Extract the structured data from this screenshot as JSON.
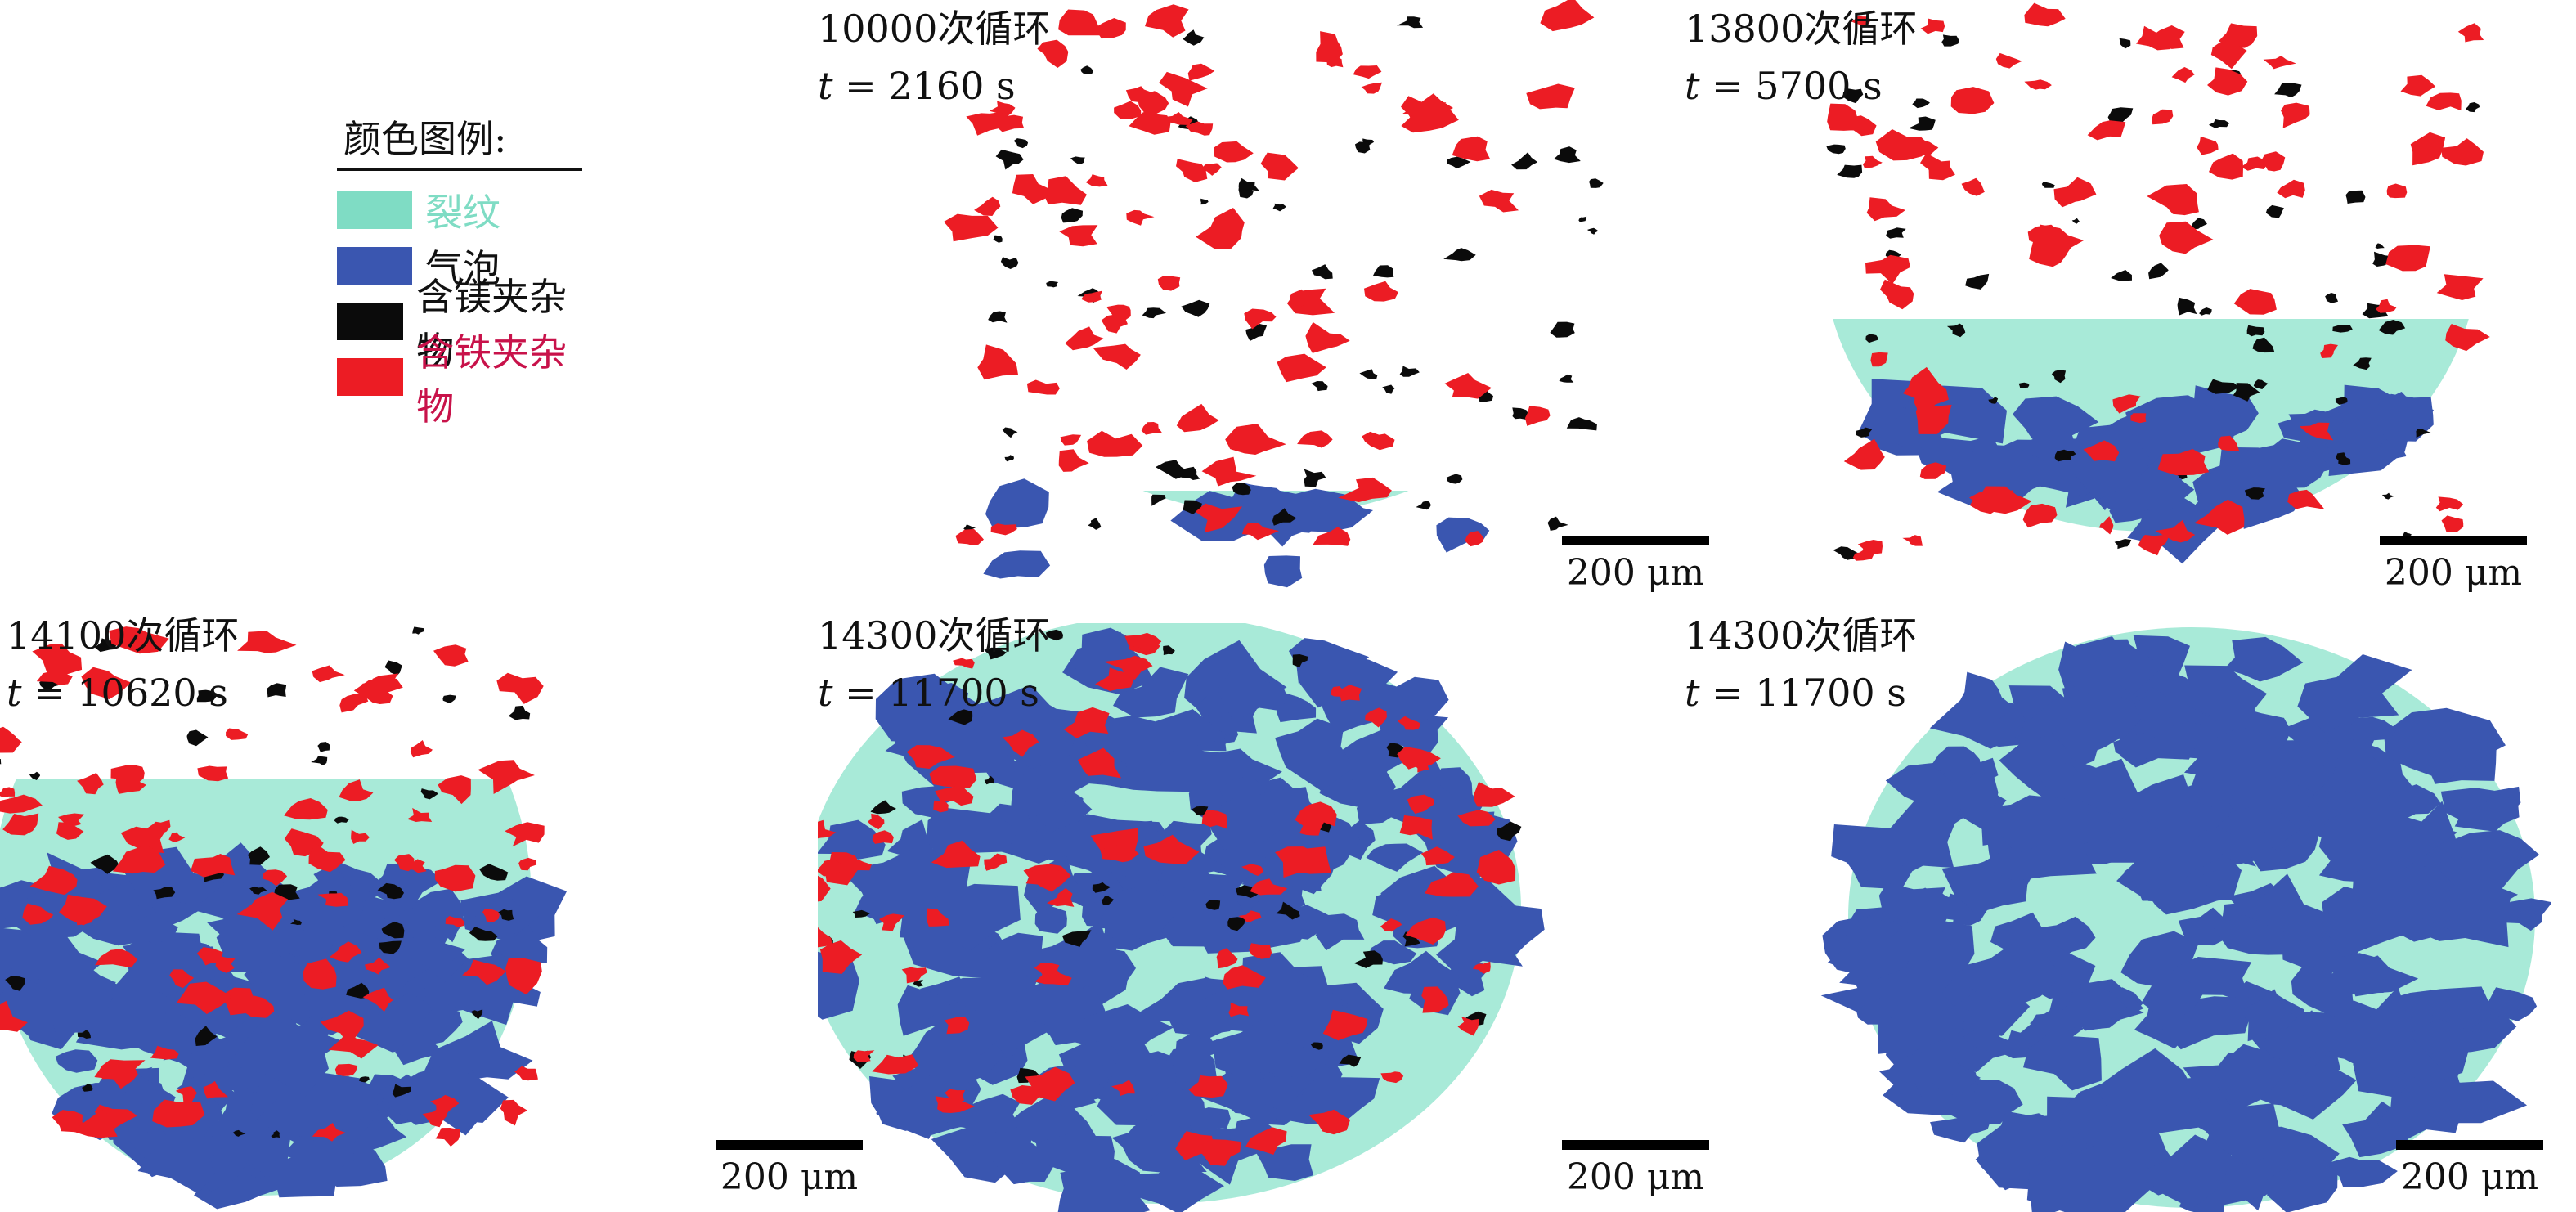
{
  "legend": {
    "title": "颜色图例:",
    "items": [
      {
        "label": "裂纹",
        "color": "#7fdcc4",
        "label_color": "#7fdcc4"
      },
      {
        "label": "气泡",
        "color": "#3a56b0",
        "label_color": "#111111"
      },
      {
        "label": "含镁夹杂物",
        "color": "#0b0b0b",
        "label_color": "#111111"
      },
      {
        "label": "含铁夹杂物",
        "color": "#ec1c24",
        "label_color": "#c8124a"
      }
    ]
  },
  "scale_label": "200 μm",
  "panels": [
    {
      "cycles": "10000次循环",
      "t_var": "t",
      "t_value": " = 2160 s"
    },
    {
      "cycles": "13800次循环",
      "t_var": "t",
      "t_value": " = 5700 s"
    },
    {
      "cycles": "14100次循环",
      "t_var": "t",
      "t_value": " = 10620 s"
    },
    {
      "cycles": "14300次循环",
      "t_var": "t",
      "t_value": " = 11700 s"
    },
    {
      "cycles": "14300次循环",
      "t_var": "t",
      "t_value": " = 11700 s"
    }
  ],
  "colors": {
    "crack": "#a8ead8",
    "bubble": "#3a56b0",
    "mg_inclusion": "#0b0b0b",
    "fe_inclusion": "#ec1c24"
  }
}
